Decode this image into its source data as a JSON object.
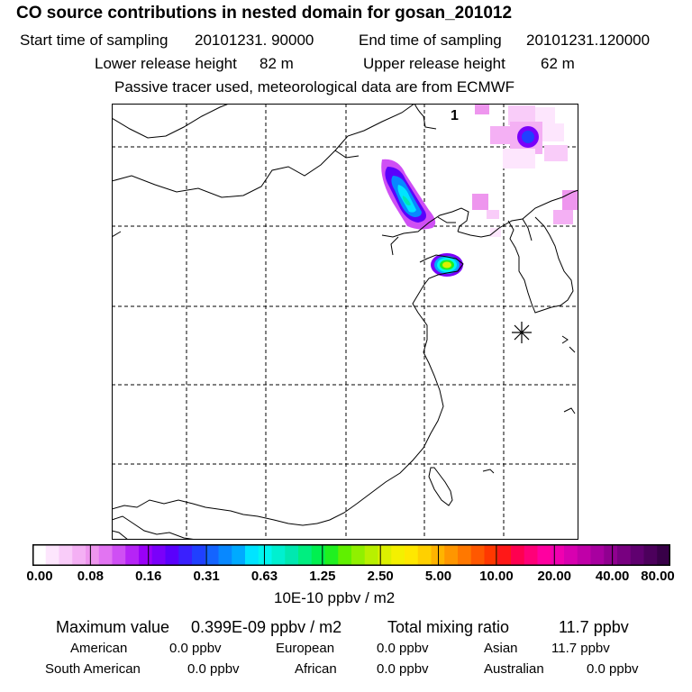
{
  "title": "CO  source contributions in nested domain for gosan_201012",
  "sampling": {
    "start_label": "Start time of sampling",
    "start_value": "20101231. 90000",
    "end_label": "End time of sampling",
    "end_value": "20101231.120000"
  },
  "release": {
    "lower_label": "Lower release height",
    "lower_value": "82 m",
    "upper_label": "Upper release height",
    "upper_value": "62 m"
  },
  "note": "Passive tracer used, meteorological data are from ECMWF",
  "map": {
    "panel_number": "1",
    "receptor_marker": "asterisk-station-marker"
  },
  "colorbar": {
    "unit": "10E-10 ppbv / m2",
    "ticks": [
      "0.00",
      "0.08",
      "0.16",
      "0.31",
      "0.63",
      "1.25",
      "2.50",
      "5.00",
      "10.00",
      "20.00",
      "40.00",
      "80.00"
    ],
    "colors": [
      "#ffffff",
      "#fde6fd",
      "#f9ccf9",
      "#f4b0f4",
      "#ee96ee",
      "#e274f2",
      "#cf4ff4",
      "#b624f6",
      "#9a00f8",
      "#7a00fa",
      "#5a00fc",
      "#3a20fe",
      "#2040ff",
      "#1464ff",
      "#0888ff",
      "#00aaff",
      "#00e4ff",
      "#00f6f0",
      "#00f0d0",
      "#00e8b0",
      "#00ee80",
      "#00f050",
      "#20f020",
      "#60f000",
      "#90f000",
      "#b8f000",
      "#dcf000",
      "#f4f000",
      "#ffe800",
      "#ffd000",
      "#ffb400",
      "#ff9600",
      "#ff7800",
      "#ff5800",
      "#ff3800",
      "#ff1818",
      "#ff0050",
      "#ff0078",
      "#ff00a0",
      "#f000b0",
      "#d800b0",
      "#c000a8",
      "#a800a0",
      "#900090",
      "#780080",
      "#600070",
      "#4c005c",
      "#380048"
    ]
  },
  "stats": {
    "max_label": "Maximum value",
    "max_value": "0.399E-09 ppbv / m2",
    "total_label": "Total mixing ratio",
    "total_value": "11.7 ppbv"
  },
  "regions": {
    "american_label": "American",
    "american_value": "0.0 ppbv",
    "european_label": "European",
    "european_value": "0.0 ppbv",
    "asian_label": "Asian",
    "asian_value": "11.7 ppbv",
    "south_american_label": "South American",
    "south_american_value": "0.0 ppbv",
    "african_label": "African",
    "african_value": "0.0 ppbv",
    "australian_label": "Australian",
    "australian_value": "0.0 ppbv"
  }
}
